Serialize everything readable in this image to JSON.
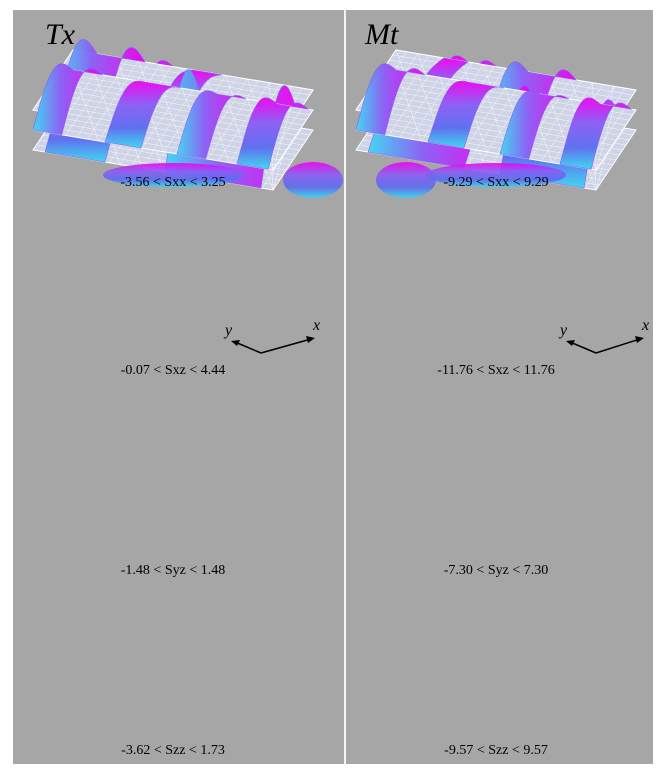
{
  "columns": [
    {
      "title": "Tx",
      "captions": [
        "-3.56 < Sxx < 3.25",
        "-0.07 < Sxz < 4.44",
        "-1.48 < Syz < 1.48",
        "-3.62 < Szz < 1.73"
      ]
    },
    {
      "title": "Mt",
      "captions": [
        "-9.29 < Sxx < 9.29",
        "-11.76 < Sxz < 11.76",
        "-7.30 < Syz < 7.30",
        "-9.57 < Szz < 9.57"
      ]
    }
  ],
  "axes": {
    "x_label": "x",
    "y_label": "y"
  },
  "colors": {
    "background": "#a6a6a6",
    "divider": "#f4f4f4",
    "mesh": "#ffffff",
    "magenta": "#f000f0",
    "violet": "#8a5cf5",
    "blue": "#5a6cf0",
    "cyan": "#3ad8f2"
  }
}
